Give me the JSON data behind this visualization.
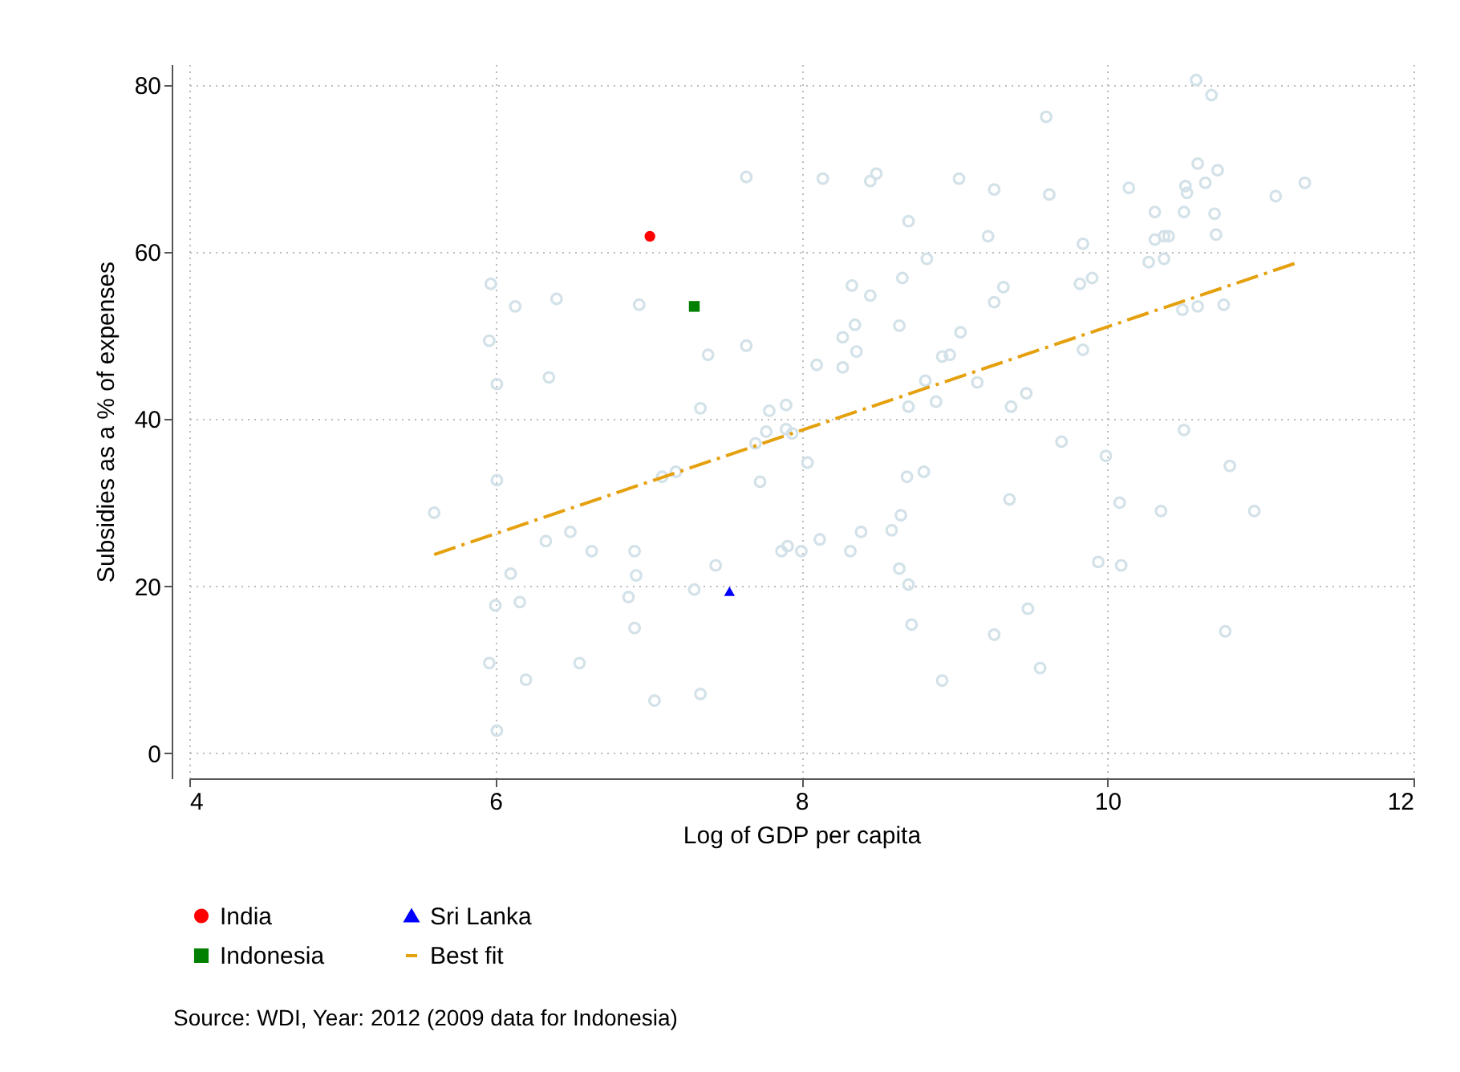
{
  "chart_data": {
    "type": "scatter",
    "xlabel": "Log of GDP per capita",
    "ylabel": "Subsidies as a % of expenses",
    "xlim": [
      4,
      12
    ],
    "xticks": [
      4,
      6,
      8,
      10,
      12
    ],
    "ylim": [
      -3,
      82.5
    ],
    "yticks": [
      0,
      20,
      40,
      60,
      80
    ],
    "grid": true,
    "legend": "bottom",
    "annotations": [
      "Source: WDI, Year: 2012 (2009 data for Indonesia)"
    ],
    "series": [
      {
        "type": "scatter",
        "color": "#d3e1e8",
        "marker": "circle",
        "x": [
          7.64,
          8.14,
          8.49,
          8.45,
          8.7,
          5.97,
          6.13,
          6.4,
          6.94,
          8.33,
          8.45,
          8.66,
          8.35,
          8.27,
          8.64,
          8.36,
          8.1,
          8.27,
          5.96,
          7.64,
          7.39,
          6.01,
          6.35,
          7.34,
          7.79,
          7.9,
          8.7,
          10.58,
          10.68,
          9.6,
          9.03,
          9.26,
          9.62,
          10.14,
          10.51,
          10.52,
          10.59,
          10.64,
          10.72,
          10.31,
          10.5,
          10.7,
          11.1,
          11.29,
          9.22,
          9.84,
          10.31,
          10.37,
          10.4,
          10.71,
          10.27,
          10.37,
          8.82,
          9.32,
          9.26,
          9.82,
          9.9,
          9.04,
          8.92,
          8.97,
          9.84,
          9.15,
          8.81,
          8.88,
          9.37,
          9.47,
          10.49,
          10.59,
          10.76,
          7.77,
          7.7,
          7.9,
          7.94,
          8.04,
          7.73,
          7.09,
          7.18,
          8.69,
          6.01,
          5.6,
          6.49,
          6.33,
          6.63,
          6.91,
          6.1,
          6.92,
          7.44,
          7.87,
          7.91,
          8.0,
          8.12,
          8.32,
          8.39,
          8.59,
          8.65,
          8.64,
          8.7,
          8.72,
          7.3,
          6.87,
          6.0,
          6.16,
          6.91,
          5.96,
          6.55,
          6.2,
          7.04,
          7.34,
          6.01,
          9.7,
          9.99,
          10.5,
          10.8,
          8.8,
          9.36,
          10.08,
          10.35,
          10.96,
          9.94,
          10.09,
          9.48,
          9.26,
          9.56,
          8.92,
          10.77
        ],
        "values": [
          69.0,
          68.8,
          69.4,
          68.5,
          63.7,
          56.2,
          53.5,
          54.4,
          53.7,
          56.0,
          54.8,
          56.9,
          51.3,
          49.8,
          51.2,
          48.1,
          46.5,
          46.2,
          49.4,
          48.8,
          47.7,
          44.2,
          45.0,
          41.3,
          41.0,
          41.7,
          41.5,
          80.6,
          78.8,
          76.2,
          68.8,
          67.5,
          66.9,
          67.7,
          67.9,
          67.1,
          70.6,
          68.3,
          69.8,
          64.8,
          64.8,
          64.6,
          66.7,
          68.3,
          61.9,
          61.0,
          61.5,
          61.9,
          61.9,
          62.1,
          58.8,
          59.2,
          59.2,
          55.8,
          54.0,
          56.2,
          56.9,
          50.4,
          47.5,
          47.7,
          48.3,
          44.4,
          44.6,
          42.1,
          41.5,
          43.1,
          53.1,
          53.5,
          53.7,
          38.5,
          37.1,
          38.8,
          38.3,
          34.8,
          32.5,
          33.1,
          33.7,
          33.1,
          32.7,
          28.8,
          26.5,
          25.4,
          24.2,
          24.2,
          21.5,
          21.3,
          22.5,
          24.2,
          24.8,
          24.2,
          25.6,
          24.2,
          26.5,
          26.7,
          28.5,
          22.1,
          20.2,
          15.4,
          19.6,
          18.7,
          17.7,
          18.1,
          15.0,
          10.8,
          10.8,
          8.8,
          6.3,
          7.1,
          2.7,
          37.3,
          35.6,
          38.7,
          34.4,
          33.7,
          30.4,
          30.0,
          29.0,
          29.0,
          22.9,
          22.5,
          17.3,
          14.2,
          10.2,
          8.7,
          14.6
        ]
      },
      {
        "type": "scatter",
        "name": "India",
        "color": "#ff0000",
        "marker": "circle",
        "x": [
          7.01
        ],
        "values": [
          61.9
        ]
      },
      {
        "type": "scatter",
        "name": "Indonesia",
        "color": "#008000",
        "marker": "square",
        "x": [
          7.3
        ],
        "values": [
          53.5
        ]
      },
      {
        "type": "scatter",
        "name": "Sri Lanka",
        "color": "#0000ff",
        "marker": "triangle",
        "x": [
          7.53
        ],
        "values": [
          19.4
        ]
      },
      {
        "type": "line",
        "name": "Best fit",
        "color": "#e5a00d",
        "marker": "none",
        "line_style": "dashed",
        "x": [
          5.6,
          11.25
        ],
        "values": [
          23.8,
          58.8
        ]
      }
    ]
  }
}
